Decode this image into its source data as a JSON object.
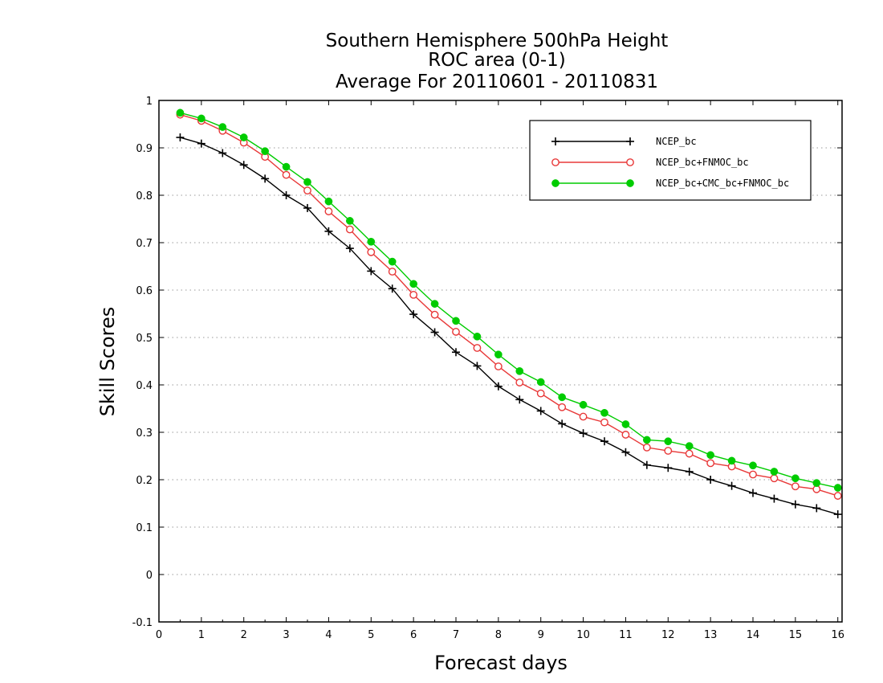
{
  "chart_data": {
    "type": "line",
    "title_lines": [
      "Southern Hemisphere 500hPa Height",
      "ROC area (0-1)",
      "Average For 20110601 - 20110831"
    ],
    "xlabel": "Forecast days",
    "ylabel": "Skill Scores",
    "xlim": [
      0,
      16.1
    ],
    "ylim": [
      -0.1,
      1
    ],
    "xticks": [
      "0",
      "1",
      "2",
      "3",
      "4",
      "5",
      "6",
      "7",
      "8",
      "9",
      "10",
      "11",
      "12",
      "13",
      "14",
      "15",
      "16"
    ],
    "yticks": [
      "-0.1",
      "0",
      "0.1",
      "0.2",
      "0.3",
      "0.4",
      "0.5",
      "0.6",
      "0.7",
      "0.8",
      "0.9",
      "1"
    ],
    "grid": "horizontal dotted",
    "legend_position": "top-right",
    "x": [
      0.5,
      1,
      1.5,
      2,
      2.5,
      3,
      3.5,
      4,
      4.5,
      5,
      5.5,
      6,
      6.5,
      7,
      7.5,
      8,
      8.5,
      9,
      9.5,
      10,
      10.5,
      11,
      11.5,
      12,
      12.5,
      13,
      13.5,
      14,
      14.5,
      15,
      15.5,
      16
    ],
    "series": [
      {
        "name": "NCEP_bc",
        "color": "#000000",
        "marker": "plus",
        "values": [
          0.922,
          0.909,
          0.889,
          0.864,
          0.835,
          0.8,
          0.773,
          0.724,
          0.688,
          0.64,
          0.603,
          0.549,
          0.511,
          0.469,
          0.44,
          0.397,
          0.369,
          0.345,
          0.318,
          0.298,
          0.281,
          0.258,
          0.231,
          0.225,
          0.217,
          0.2,
          0.187,
          0.172,
          0.16,
          0.148,
          0.14,
          0.127
        ]
      },
      {
        "name": "NCEP_bc+FNMOC_bc",
        "color": "#e83838",
        "marker": "open-circle",
        "values": [
          0.97,
          0.957,
          0.936,
          0.911,
          0.881,
          0.843,
          0.81,
          0.766,
          0.728,
          0.68,
          0.639,
          0.59,
          0.548,
          0.512,
          0.478,
          0.439,
          0.405,
          0.382,
          0.353,
          0.333,
          0.321,
          0.295,
          0.268,
          0.261,
          0.255,
          0.235,
          0.228,
          0.211,
          0.203,
          0.186,
          0.18,
          0.166
        ]
      },
      {
        "name": "NCEP_bc+CMC_bc+FNMOC_bc",
        "color": "#00cc00",
        "marker": "filled-circle",
        "values": [
          0.974,
          0.962,
          0.944,
          0.922,
          0.893,
          0.86,
          0.828,
          0.787,
          0.746,
          0.702,
          0.66,
          0.613,
          0.571,
          0.535,
          0.502,
          0.464,
          0.429,
          0.406,
          0.374,
          0.358,
          0.341,
          0.317,
          0.284,
          0.281,
          0.271,
          0.252,
          0.24,
          0.23,
          0.217,
          0.203,
          0.193,
          0.183
        ]
      }
    ]
  }
}
